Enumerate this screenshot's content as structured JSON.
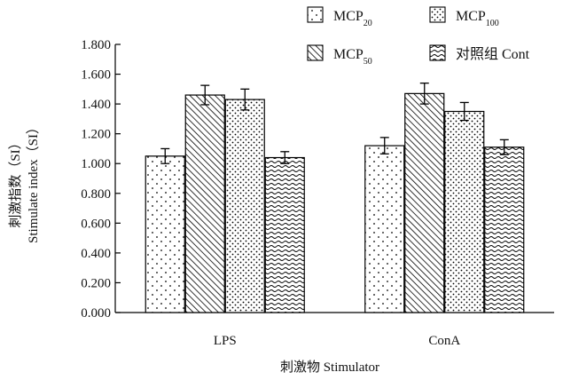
{
  "chart_data": {
    "type": "bar",
    "xlabel": "刺激物 Stimulator",
    "ylabel_cn": "刺激指数（SI）",
    "ylabel_en": "Stimulate index（SI）",
    "ylim": [
      0,
      1.8
    ],
    "yticks": [
      0,
      0.2,
      0.4,
      0.6,
      0.8,
      1.0,
      1.2,
      1.4,
      1.6,
      1.8
    ],
    "ytick_labels": [
      "0.000",
      "0.200",
      "0.400",
      "0.600",
      "0.800",
      "1.000",
      "1.200",
      "1.400",
      "1.600",
      "1.800"
    ],
    "categories": [
      "LPS",
      "ConA"
    ],
    "grid": false,
    "legend_position": "top",
    "series": [
      {
        "name": "MCP",
        "sub": "20",
        "pattern": "dots-sparse",
        "values": [
          1.05,
          1.12
        ],
        "errors": [
          0.05,
          0.055
        ]
      },
      {
        "name": "MCP",
        "sub": "50",
        "pattern": "diagonal",
        "values": [
          1.46,
          1.47
        ],
        "errors": [
          0.065,
          0.07
        ]
      },
      {
        "name": "MCP",
        "sub": "100",
        "pattern": "dots-dense",
        "values": [
          1.43,
          1.35
        ],
        "errors": [
          0.07,
          0.06
        ]
      },
      {
        "name": "对照组 Cont",
        "sub": "",
        "pattern": "waves",
        "values": [
          1.04,
          1.11
        ],
        "errors": [
          0.04,
          0.05
        ]
      }
    ],
    "legend_order": [
      0,
      2,
      1,
      3
    ]
  }
}
